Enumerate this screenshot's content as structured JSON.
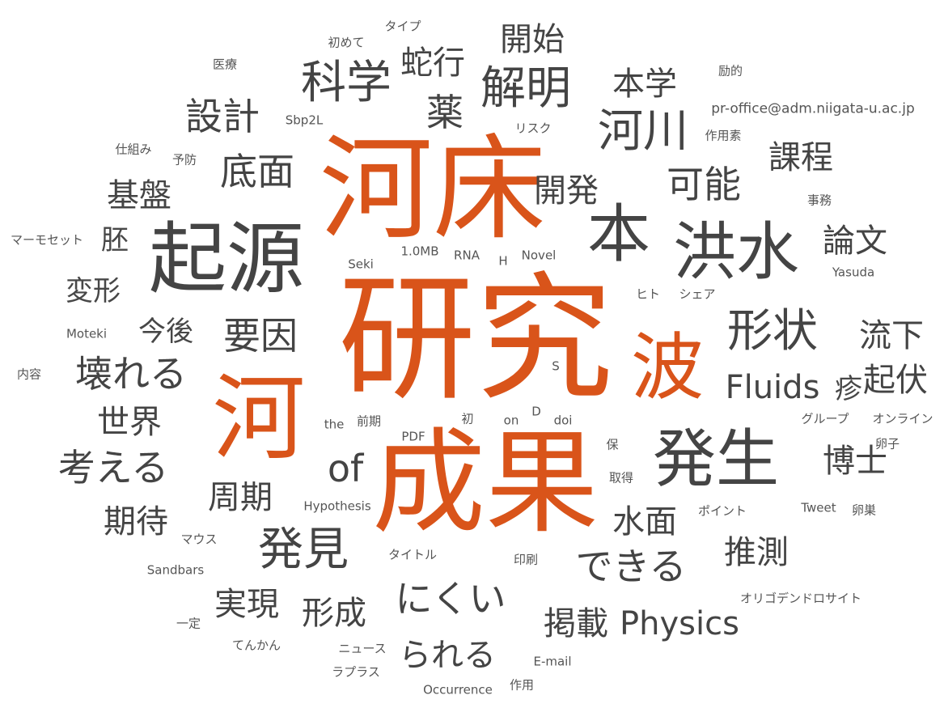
{
  "colors": {
    "accent": "#d9541a",
    "word": "#444444",
    "small_word": "#555555"
  },
  "words": [
    {
      "text": "研究",
      "size": 9,
      "accent": true
    },
    {
      "text": "河床",
      "size": 8,
      "accent": true
    },
    {
      "text": "成果",
      "size": 8,
      "accent": true
    },
    {
      "text": "河",
      "size": 7,
      "accent": true
    },
    {
      "text": "波",
      "size": 6,
      "accent": true
    },
    {
      "text": "起源",
      "size": 8
    },
    {
      "text": "本",
      "size": 7
    },
    {
      "text": "洪水",
      "size": 7
    },
    {
      "text": "発生",
      "size": 7
    },
    {
      "text": "発見",
      "size": 6
    },
    {
      "text": "形状",
      "size": 6
    },
    {
      "text": "科学",
      "size": 6
    },
    {
      "text": "解明",
      "size": 6
    },
    {
      "text": "河川",
      "size": 6
    },
    {
      "text": "設計",
      "size": 5
    },
    {
      "text": "底面",
      "size": 5
    },
    {
      "text": "薬",
      "size": 5
    },
    {
      "text": "可能",
      "size": 5
    },
    {
      "text": "要因",
      "size": 5
    },
    {
      "text": "壊れる",
      "size": 5
    },
    {
      "text": "考える",
      "size": 5
    },
    {
      "text": "of",
      "size": 5
    },
    {
      "text": "にくい",
      "size": 5
    },
    {
      "text": "できる",
      "size": 5
    },
    {
      "text": "蛇行",
      "size": 4
    },
    {
      "text": "開始",
      "size": 4
    },
    {
      "text": "本学",
      "size": 4
    },
    {
      "text": "課程",
      "size": 4
    },
    {
      "text": "論文",
      "size": 4
    },
    {
      "text": "基盤",
      "size": 4
    },
    {
      "text": "開発",
      "size": 4
    },
    {
      "text": "流下",
      "size": 4
    },
    {
      "text": "Fluids",
      "size": 4
    },
    {
      "text": "起伏",
      "size": 4
    },
    {
      "text": "博士",
      "size": 4
    },
    {
      "text": "推測",
      "size": 4
    },
    {
      "text": "水面",
      "size": 4
    },
    {
      "text": "周期",
      "size": 4
    },
    {
      "text": "期待",
      "size": 4
    },
    {
      "text": "実現",
      "size": 4
    },
    {
      "text": "形成",
      "size": 4
    },
    {
      "text": "掲載",
      "size": 4
    },
    {
      "text": "Physics",
      "size": 4
    },
    {
      "text": "られる",
      "size": 4
    },
    {
      "text": "世界",
      "size": 4
    },
    {
      "text": "変形",
      "size": 3
    },
    {
      "text": "胚",
      "size": 3
    },
    {
      "text": "今後",
      "size": 3
    },
    {
      "text": "疹",
      "size": 3
    },
    {
      "text": "pr-office@adm.niigata-u.ac.jp",
      "size": 2
    },
    {
      "text": "タイプ",
      "size": 1
    },
    {
      "text": "初めて",
      "size": 1
    },
    {
      "text": "医療",
      "size": 1
    },
    {
      "text": "励的",
      "size": 1
    },
    {
      "text": "Sbp2L",
      "size": 1
    },
    {
      "text": "リスク",
      "size": 1
    },
    {
      "text": "作用素",
      "size": 1
    },
    {
      "text": "仕組み",
      "size": 1
    },
    {
      "text": "予防",
      "size": 1
    },
    {
      "text": "事務",
      "size": 1
    },
    {
      "text": "マーモセット",
      "size": 1
    },
    {
      "text": "1.0MB",
      "size": 1
    },
    {
      "text": "RNA",
      "size": 1
    },
    {
      "text": "H",
      "size": 1
    },
    {
      "text": "Novel",
      "size": 1
    },
    {
      "text": "Seki",
      "size": 1
    },
    {
      "text": "Yasuda",
      "size": 1
    },
    {
      "text": "ヒト",
      "size": 1
    },
    {
      "text": "シェア",
      "size": 1
    },
    {
      "text": "Moteki",
      "size": 1
    },
    {
      "text": "内容",
      "size": 1
    },
    {
      "text": "S",
      "size": 1
    },
    {
      "text": "the",
      "size": 1
    },
    {
      "text": "前期",
      "size": 1
    },
    {
      "text": "初",
      "size": 1
    },
    {
      "text": "on",
      "size": 1
    },
    {
      "text": "D",
      "size": 1
    },
    {
      "text": "doi",
      "size": 1
    },
    {
      "text": "グループ",
      "size": 1
    },
    {
      "text": "オンライン",
      "size": 1
    },
    {
      "text": "卵子",
      "size": 1
    },
    {
      "text": "PDF",
      "size": 1
    },
    {
      "text": "保",
      "size": 1
    },
    {
      "text": "取得",
      "size": 1
    },
    {
      "text": "Hypothesis",
      "size": 1
    },
    {
      "text": "ポイント",
      "size": 1
    },
    {
      "text": "Tweet",
      "size": 1
    },
    {
      "text": "卵巣",
      "size": 1
    },
    {
      "text": "マウス",
      "size": 1
    },
    {
      "text": "タイトル",
      "size": 1
    },
    {
      "text": "印刷",
      "size": 1
    },
    {
      "text": "Sandbars",
      "size": 1
    },
    {
      "text": "オリゴデンドロサイト",
      "size": 1
    },
    {
      "text": "一定",
      "size": 1
    },
    {
      "text": "てんかん",
      "size": 1
    },
    {
      "text": "ニュース",
      "size": 1
    },
    {
      "text": "E-mail",
      "size": 1
    },
    {
      "text": "ラプラス",
      "size": 1
    },
    {
      "text": "Occurrence",
      "size": 1
    },
    {
      "text": "作用",
      "size": 1
    }
  ]
}
